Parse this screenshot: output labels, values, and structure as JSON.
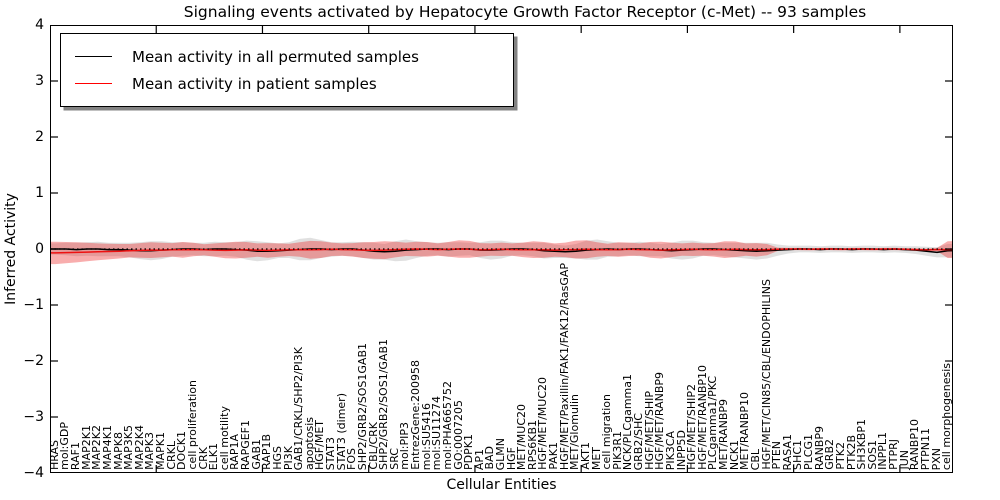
{
  "title": "Signaling events activated by Hepatocyte Growth Factor Receptor (c-Met) -- 93 samples",
  "axes": {
    "xlabel": "Cellular Entities",
    "ylabel": "Inferred Activity",
    "ytick_labels": [
      "4",
      "3",
      "2",
      "1",
      "0",
      "−1",
      "−2",
      "−3",
      "−4"
    ]
  },
  "legend": {
    "items": [
      {
        "label": "Mean activity in all permuted samples",
        "color": "#000000"
      },
      {
        "label": "Mean activity in patient samples",
        "color": "#ff0000"
      }
    ]
  },
  "chart_data": {
    "type": "line",
    "title": "Signaling events activated by Hepatocyte Growth Factor Receptor (c-Met) -- 93 samples",
    "xlabel": "Cellular Entities",
    "ylabel": "Inferred Activity",
    "ylim": [
      -4,
      4
    ],
    "yticks": [
      4,
      3,
      2,
      1,
      0,
      -1,
      -2,
      -3,
      -4
    ],
    "grid": false,
    "legend_position": "upper left",
    "zero_line": {
      "style": "dotted",
      "color": "#000000",
      "y": 0
    },
    "xtick_every": 10,
    "categories": [
      "HRAS",
      "mol:GDP",
      "RAF1",
      "MAP2K1",
      "MAP2K2",
      "MAP4K1",
      "MAPK8",
      "MAP3K5",
      "MAP2K4",
      "MAPK3",
      "MAPK1",
      "CRKL",
      "DOCK1",
      "cell proliferation",
      "CRK",
      "ELK1",
      "cell motility",
      "RAP1A",
      "RAPGEF1",
      "GAB1",
      "RAP1B",
      "HGS",
      "PI3K",
      "GAB1/CRKL/SHP2/PI3K",
      "apoptosis",
      "HGF/MET",
      "STAT3",
      "STAT3 (dimer)",
      "FOS",
      "SHP2/GRB2/SOS1GAB1",
      "CBL/CRK",
      "SHP2/GRB2/SOS1/GAB1",
      "SRC",
      "mol:PIP3",
      "EntrezGene:200958",
      "mol:SU5416",
      "mol:SU11274",
      "mol:PHA665752",
      "GO:0007205",
      "PDPK1",
      "AP1",
      "BAD",
      "GLMN",
      "HGF",
      "MET/MUC20",
      "RPS6KB1",
      "HGF/MET/MUC20",
      "PAK1",
      "HGF/MET/Paxillin/FAK1/FAK12/RasGAP",
      "MET/Glomulin",
      "AKT1",
      "MET",
      "cell migration",
      "PIK3R1",
      "NCK/PLCgamma1",
      "GRB2/SHC",
      "HGF/MET/SHIP",
      "HGF/MET/RANBP9",
      "PIK3CA",
      "INPP5D",
      "HGF/MET/SHIP2",
      "HGF/MET/RANBP10",
      "PLCgamma1/PKC",
      "MET/RANBP9",
      "NCK1",
      "MET/RANBP10",
      "CBL",
      "HGF/MET/CIN85/CBL/ENDOPHILINS",
      "PTEN",
      "RASA1",
      "SHC1",
      "PLCG1",
      "RANBP9",
      "GRB2",
      "PTK2",
      "PTK2B",
      "SH3KBP1",
      "SOS1",
      "INPPL1",
      "PTPRJ",
      "JUN",
      "RANBP10",
      "PTPN11",
      "PXN",
      "cell morphogenesis"
    ],
    "series": [
      {
        "name": "Mean activity in all permuted samples",
        "color": "#000000",
        "band_color": "#bbbbbb",
        "band_opacity": 0.45,
        "values": [
          0,
          0,
          -0.01,
          0,
          0,
          -0.01,
          -0.01,
          -0.02,
          -0.03,
          -0.03,
          -0.02,
          -0.01,
          0,
          0,
          -0.01,
          0,
          0,
          -0.01,
          -0.02,
          -0.04,
          -0.04,
          -0.03,
          -0.02,
          -0.01,
          0,
          0,
          -0.01,
          0,
          0,
          -0.02,
          -0.04,
          -0.05,
          -0.04,
          -0.02,
          -0.01,
          0,
          0,
          -0.01,
          0,
          0,
          -0.02,
          -0.02,
          -0.01,
          0,
          0,
          -0.01,
          -0.03,
          -0.04,
          -0.05,
          -0.04,
          -0.02,
          -0.01,
          0,
          -0.01,
          0,
          0,
          -0.01,
          -0.02,
          -0.03,
          -0.02,
          -0.01,
          0,
          0,
          -0.01,
          -0.02,
          -0.03,
          -0.04,
          -0.03,
          -0.02,
          -0.01,
          0,
          0,
          -0.01,
          0,
          0,
          -0.01,
          0,
          0,
          -0.01,
          0,
          -0.01,
          -0.02,
          -0.04,
          -0.06,
          -0.03
        ],
        "band_halfwidth": [
          0.1,
          0.11,
          0.12,
          0.12,
          0.13,
          0.12,
          0.12,
          0.13,
          0.15,
          0.17,
          0.16,
          0.13,
          0.12,
          0.11,
          0.12,
          0.13,
          0.12,
          0.13,
          0.17,
          0.18,
          0.16,
          0.13,
          0.14,
          0.19,
          0.2,
          0.16,
          0.13,
          0.12,
          0.13,
          0.14,
          0.15,
          0.14,
          0.18,
          0.19,
          0.15,
          0.12,
          0.11,
          0.13,
          0.12,
          0.11,
          0.14,
          0.17,
          0.16,
          0.12,
          0.11,
          0.12,
          0.14,
          0.12,
          0.11,
          0.13,
          0.17,
          0.18,
          0.14,
          0.12,
          0.11,
          0.13,
          0.12,
          0.11,
          0.14,
          0.17,
          0.16,
          0.12,
          0.11,
          0.12,
          0.13,
          0.14,
          0.15,
          0.14,
          0.1,
          0.07,
          0.06,
          0.06,
          0.06,
          0.06,
          0.06,
          0.06,
          0.06,
          0.06,
          0.06,
          0.06,
          0.06,
          0.07,
          0.08,
          0.09,
          0.12
        ]
      },
      {
        "name": "Mean activity in patient samples",
        "color": "#ee1111",
        "band_color": "#ee3333",
        "band_opacity": 0.4,
        "values": [
          -0.07,
          -0.065,
          -0.06,
          -0.055,
          -0.05,
          -0.045,
          -0.04,
          -0.03,
          -0.025,
          -0.02,
          -0.02,
          -0.015,
          -0.015,
          -0.01,
          -0.015,
          -0.02,
          -0.025,
          -0.02,
          -0.015,
          -0.02,
          -0.025,
          -0.02,
          -0.015,
          -0.01,
          -0.015,
          -0.01,
          -0.005,
          -0.01,
          -0.015,
          -0.02,
          -0.025,
          -0.02,
          -0.01,
          -0.005,
          0,
          -0.005,
          -0.01,
          -0.005,
          0,
          -0.005,
          -0.015,
          -0.01,
          -0.005,
          -0.01,
          -0.015,
          -0.01,
          -0.015,
          -0.02,
          -0.015,
          -0.01,
          -0.005,
          -0.01,
          -0.015,
          -0.01,
          -0.005,
          -0.01,
          -0.015,
          -0.02,
          -0.015,
          -0.01,
          -0.005,
          -0.01,
          -0.015,
          -0.01,
          -0.005,
          -0.01,
          -0.015,
          -0.01,
          -0.005,
          0,
          0,
          -0.005,
          0,
          0,
          -0.005,
          0,
          0,
          -0.005,
          0,
          0,
          -0.005,
          -0.01,
          -0.015,
          -0.01,
          -0.01
        ],
        "band_halfwidth": [
          0.2,
          0.19,
          0.18,
          0.165,
          0.15,
          0.14,
          0.13,
          0.12,
          0.13,
          0.14,
          0.13,
          0.12,
          0.14,
          0.12,
          0.1,
          0.12,
          0.14,
          0.15,
          0.14,
          0.12,
          0.13,
          0.12,
          0.11,
          0.13,
          0.16,
          0.15,
          0.12,
          0.11,
          0.12,
          0.14,
          0.15,
          0.16,
          0.14,
          0.12,
          0.13,
          0.13,
          0.11,
          0.13,
          0.155,
          0.15,
          0.12,
          0.11,
          0.12,
          0.11,
          0.13,
          0.15,
          0.14,
          0.12,
          0.13,
          0.16,
          0.16,
          0.13,
          0.11,
          0.13,
          0.12,
          0.11,
          0.14,
          0.15,
          0.13,
          0.11,
          0.12,
          0.11,
          0.12,
          0.15,
          0.14,
          0.11,
          0.12,
          0.1,
          0.03,
          0.02,
          0.02,
          0.02,
          0.02,
          0.02,
          0.02,
          0.02,
          0.02,
          0.02,
          0.02,
          0.02,
          0.02,
          0.02,
          0.02,
          0.03,
          0.15
        ]
      }
    ]
  }
}
